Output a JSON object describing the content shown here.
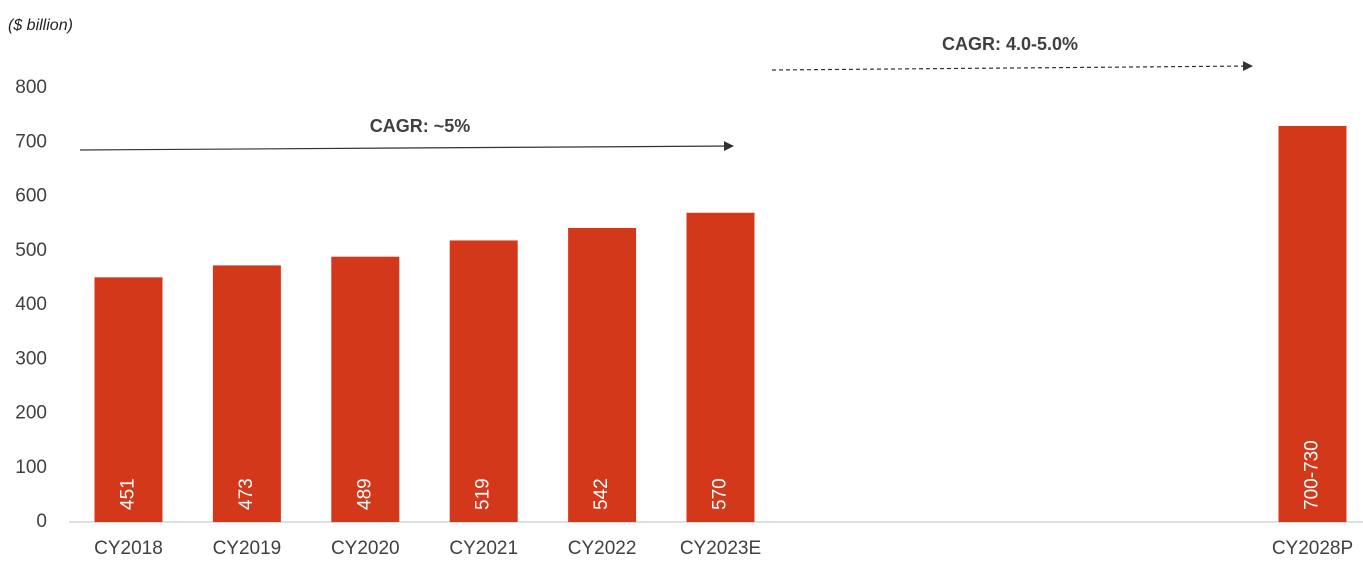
{
  "chart_data": {
    "type": "bar",
    "subtitle": "($ billion)",
    "annotations": [
      "CAGR: ~5%",
      "CAGR: 4.0-5.0%"
    ],
    "categories": [
      "CY2018",
      "CY2019",
      "CY2020",
      "CY2021",
      "CY2022",
      "CY2023E",
      null,
      null,
      null,
      null,
      "CY2028P"
    ],
    "values": [
      451,
      473,
      489,
      519,
      542,
      570,
      null,
      null,
      null,
      null,
      730
    ],
    "value_labels": [
      "451",
      "473",
      "489",
      "519",
      "542",
      "570",
      null,
      null,
      null,
      null,
      "700-730"
    ],
    "color": "#d4381a",
    "ylim": [
      0,
      800
    ],
    "yticks": [
      0,
      100,
      200,
      300,
      400,
      500,
      600,
      700,
      800
    ],
    "grid": false
  }
}
